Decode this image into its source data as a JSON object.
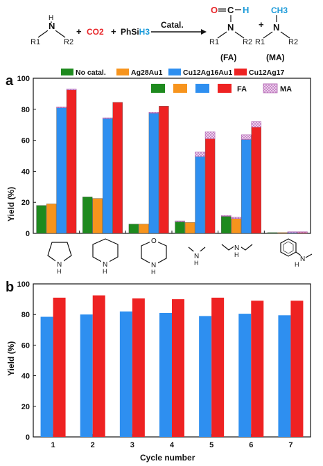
{
  "scheme": {
    "reactant_n": "N",
    "reactant_h": "H",
    "reactant_r1": "R1",
    "reactant_r2": "R2",
    "plus1": "+",
    "co2": "CO2",
    "plus2": "+",
    "silane_prefix": "PhSi",
    "silane_h3": "H3",
    "arrow_label": "Catal.",
    "fa_o": "O",
    "fa_c": "C",
    "fa_h": "H",
    "fa_n": "N",
    "fa_r1": "R1",
    "fa_r2": "R2",
    "fa_label": "(FA)",
    "plus3": "+",
    "ma_ch3": "CH3",
    "ma_n": "N",
    "ma_r1": "R1",
    "ma_r2": "R2",
    "ma_label": "(MA)"
  },
  "colors": {
    "green": "#1e8a1e",
    "orange": "#f7941d",
    "blue": "#2e8ff0",
    "red": "#ee2222",
    "ma_fill": "#e8c0e8",
    "co2": "#e8262a",
    "o_atom": "#e8262a",
    "h_atom": "#1a9ad9"
  },
  "chart_data": [
    {
      "type": "bar",
      "panel_label": "a",
      "ylabel": "Yield (%)",
      "ylim": [
        0,
        100
      ],
      "yticks": [
        0,
        20,
        40,
        60,
        80,
        100
      ],
      "legend_top": [
        "No catal.",
        "Ag28Au1",
        "Cu12Ag16Au1",
        "Cu12Ag17"
      ],
      "legend_inner_fa": "FA",
      "legend_inner_ma": "MA",
      "categories": [
        "pyrrolidine",
        "piperidine",
        "morpholine",
        "dimethylamine",
        "diethylamine",
        "N-methylaniline"
      ],
      "series": [
        {
          "name": "No catal.",
          "color": "#1e8a1e",
          "fa": [
            18,
            23.5,
            6,
            7.5,
            11,
            0.5
          ],
          "ma": [
            0,
            0,
            0,
            0.5,
            0.5,
            0
          ]
        },
        {
          "name": "Ag28Au1",
          "color": "#f7941d",
          "fa": [
            19,
            22.5,
            6,
            7,
            9.5,
            0.5
          ],
          "ma": [
            0,
            0,
            0,
            0,
            1,
            0
          ]
        },
        {
          "name": "Cu12Ag16Au1",
          "color": "#2e8ff0",
          "fa": [
            81,
            74,
            77.5,
            49.5,
            60.5,
            0.5
          ],
          "ma": [
            0.5,
            0.5,
            0.5,
            3,
            3,
            0.5
          ]
        },
        {
          "name": "Cu12Ag17",
          "color": "#ee2222",
          "fa": [
            92.5,
            84.5,
            82,
            61,
            68.5,
            0.5
          ],
          "ma": [
            0.5,
            0,
            0,
            4.5,
            3.5,
            0.5
          ]
        }
      ],
      "molecule_labels": [
        "N",
        "H",
        "N",
        "H",
        "O",
        "N",
        "H",
        "N",
        "H",
        "N",
        "H",
        "N",
        "H"
      ]
    },
    {
      "type": "bar",
      "panel_label": "b",
      "xlabel": "Cycle number",
      "ylabel": "Yield (%)",
      "ylim": [
        0,
        100
      ],
      "yticks": [
        0,
        20,
        40,
        60,
        80,
        100
      ],
      "categories": [
        "1",
        "2",
        "3",
        "4",
        "5",
        "6",
        "7"
      ],
      "series": [
        {
          "color": "#2e8ff0",
          "values": [
            78.5,
            80,
            82,
            81,
            79,
            80.5,
            79.5
          ]
        },
        {
          "color": "#ee2222",
          "values": [
            91,
            92.5,
            90.5,
            90,
            91,
            89,
            89
          ]
        }
      ]
    }
  ]
}
